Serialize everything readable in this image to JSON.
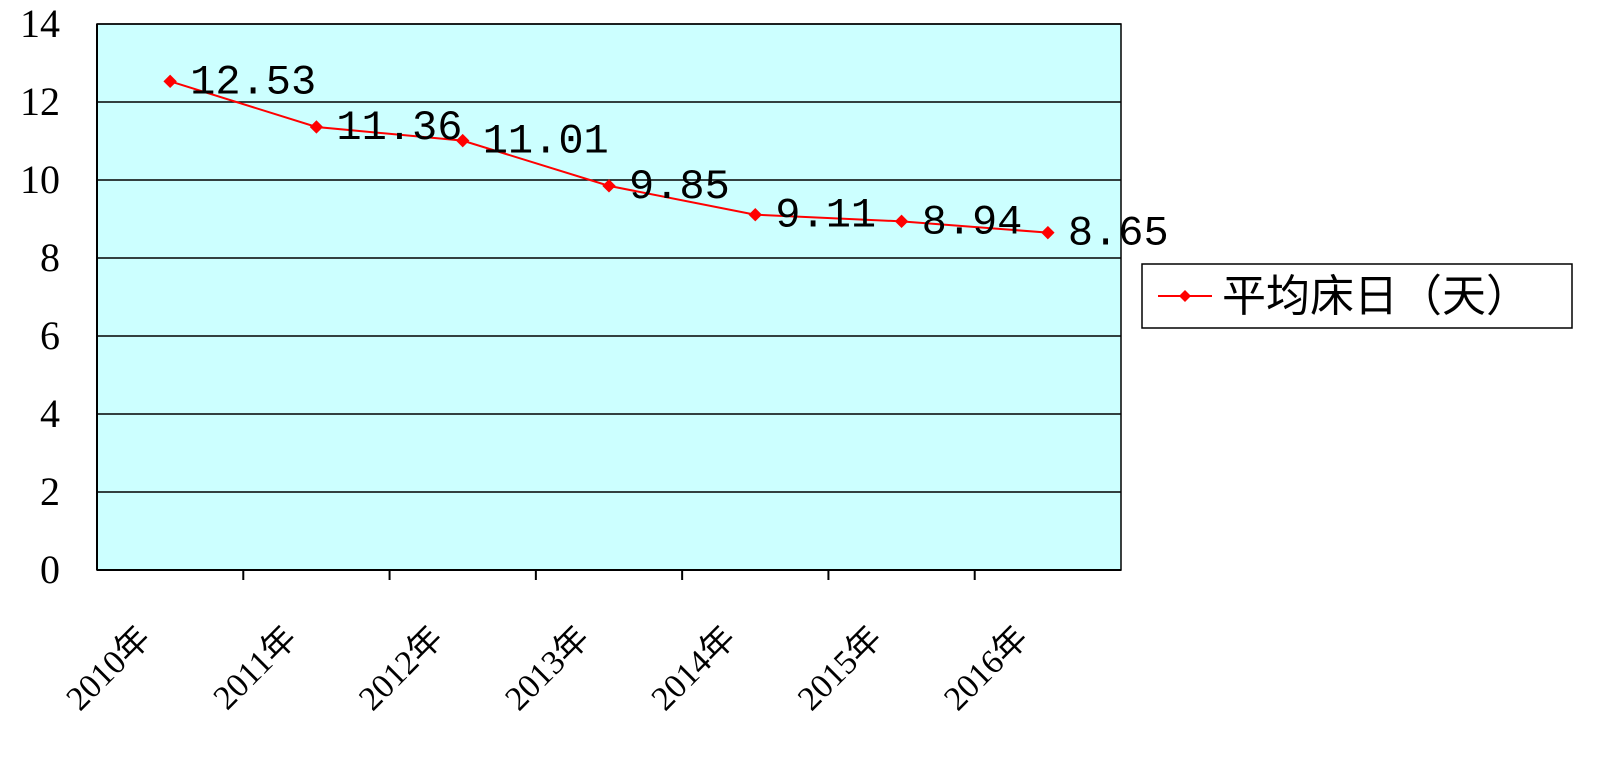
{
  "chart_data": {
    "type": "line",
    "categories": [
      "2010年",
      "2011年",
      "2012年",
      "2013年",
      "2014年",
      "2015年",
      "2016年"
    ],
    "series": [
      {
        "name": "平均床日（天）",
        "values": [
          12.53,
          11.36,
          11.01,
          9.85,
          9.11,
          8.94,
          8.65
        ],
        "color": "#ff0000"
      }
    ],
    "data_labels": [
      "12.53",
      "11.36",
      "11.01",
      "9.85",
      "9.11",
      "8.94",
      "8.65"
    ],
    "y_ticks": [
      "0",
      "2",
      "4",
      "6",
      "8",
      "10",
      "12",
      "14"
    ],
    "ylim": [
      0,
      14
    ],
    "grid": true,
    "legend_position": "right",
    "plot_background": "#ccffff",
    "title": "",
    "xlabel": "",
    "ylabel": ""
  }
}
